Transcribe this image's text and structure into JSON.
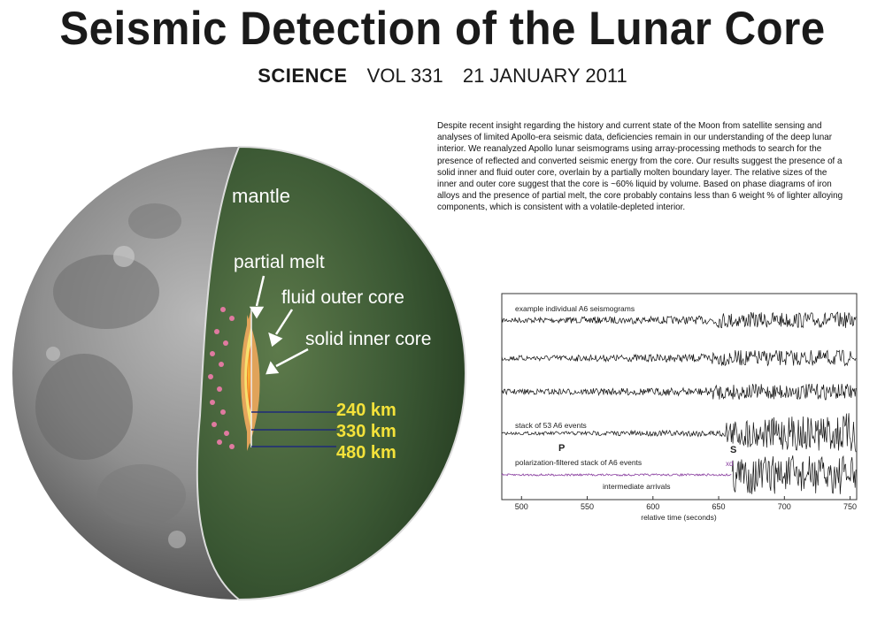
{
  "title": "Seismic Detection of the Lunar Core",
  "citation": {
    "journal": "SCIENCE",
    "volume": "VOL 331",
    "date": "21 JANUARY 2011"
  },
  "abstract": "Despite recent insight regarding the history and current state of the Moon from satellite sensing and analyses of limited Apollo-era seismic data, deficiencies remain in our understanding of the deep lunar interior. We reanalyzed Apollo lunar seismograms using array-processing methods to search for the presence of reflected and converted seismic energy from the core. Our results suggest the presence of a solid inner and fluid outer core, overlain by a partially molten boundary layer. The relative sizes of the inner and outer core suggest that the core is ~60% liquid by volume. Based on phase diagrams of iron alloys and the presence of partial melt, the core probably contains less than 6 weight % of lighter alloying components, which is consistent with a volatile-depleted interior.",
  "moon_diagram": {
    "labels": {
      "mantle": "mantle",
      "partial_melt": "partial melt",
      "fluid_outer_core": "fluid outer core",
      "solid_inner_core": "solid inner core"
    },
    "radii": [
      "240 km",
      "330 km",
      "480 km"
    ],
    "colors": {
      "mantle": "#2f4a2a",
      "partial_melt": "#e0a35a",
      "outer_core": "#f4d86a",
      "inner_core": "#e84a1f",
      "radius_labels": "#f4e23a"
    }
  },
  "chart_data": {
    "type": "line",
    "xlabel": "relative time (seconds)",
    "xlim": [
      485,
      755
    ],
    "xticks": [
      500,
      550,
      600,
      650,
      700,
      750
    ],
    "annotations": {
      "trace1": "example individual A6 seismograms",
      "stack": "stack of 53 A6 events",
      "p_phase": "P",
      "s_phase": "S",
      "polarization": "polarization-filtered stack of A6 events",
      "xd": "xd",
      "intermediate": "intermediate arrivals"
    },
    "series": [
      {
        "type": "individual"
      },
      {
        "type": "individual"
      },
      {
        "type": "individual"
      },
      {
        "type": "stack"
      },
      {
        "type": "polarization-filtered"
      }
    ],
    "phase_times": {
      "P": 550,
      "S": 665
    },
    "colors": {
      "trace": "#111111",
      "filtered": "#8a3fa0"
    }
  }
}
